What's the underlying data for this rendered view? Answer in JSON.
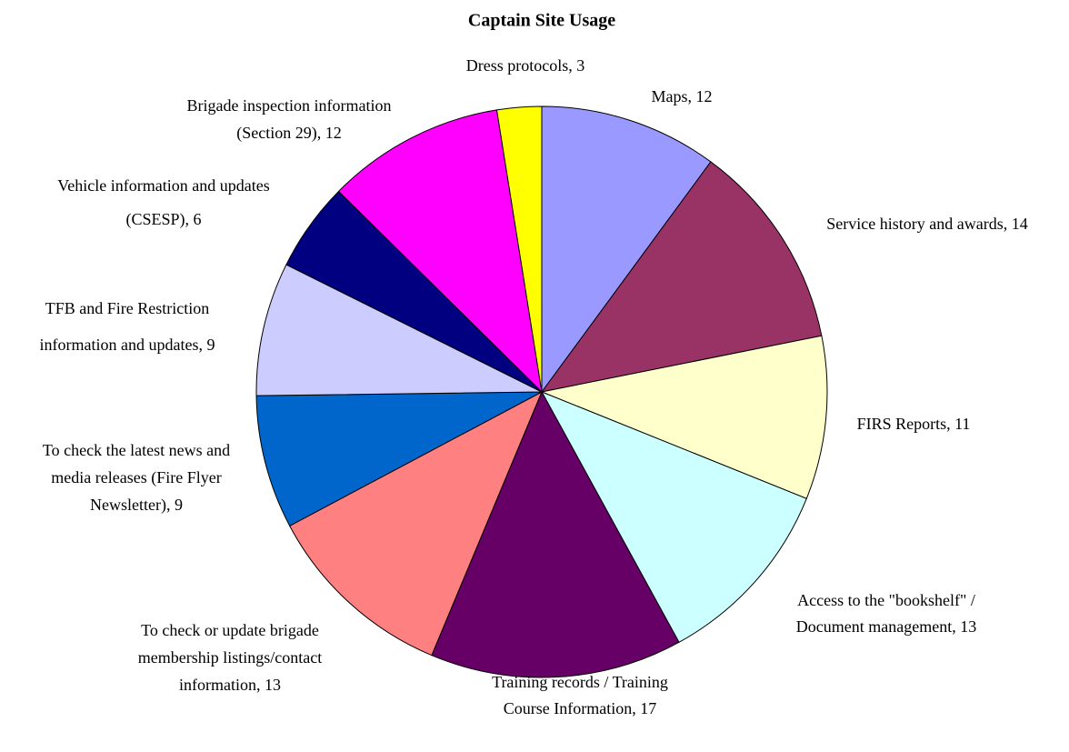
{
  "chart_data": {
    "type": "pie",
    "title": "Captain Site Usage",
    "labels": [
      [
        "Maps, 12"
      ],
      [
        "Service history and awards, 14"
      ],
      [
        "FIRS Reports, 11"
      ],
      [
        "Access to the \"bookshelf\" /",
        "Document management, 13"
      ],
      [
        "Training records / Training",
        "Course Information, 17"
      ],
      [
        "To check or update brigade",
        "membership listings/contact",
        "information, 13"
      ],
      [
        "To check the latest news and",
        "media releases (Fire Flyer",
        "Newsletter), 9"
      ],
      [
        "TFB and Fire Restriction",
        "information and updates, 9"
      ],
      [
        "Vehicle information and updates",
        "(CSESP), 6"
      ],
      [
        "Brigade inspection information",
        "(Section 29), 12"
      ],
      [
        "Dress protocols, 3"
      ]
    ],
    "values": [
      12,
      14,
      11,
      13,
      17,
      13,
      9,
      9,
      6,
      12,
      3
    ],
    "colors": [
      "#9999ff",
      "#993366",
      "#ffffcc",
      "#ccffff",
      "#660066",
      "#ff8080",
      "#0066cc",
      "#ccccff",
      "#000080",
      "#ff00ff",
      "#ffff00"
    ]
  }
}
